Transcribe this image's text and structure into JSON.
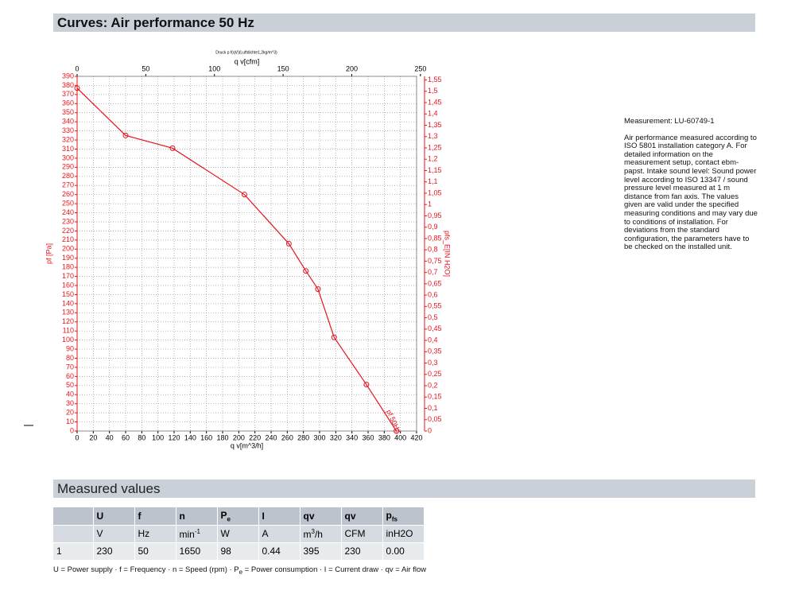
{
  "header": {
    "title": "Curves: Air performance 50 Hz"
  },
  "chart": {
    "type": "line",
    "title": "Druck p f(qV)(Luftdichte1,2kg/m^3)",
    "x_label": "q v[m^3/h]",
    "x2_label": "q v[cfm]",
    "y_label": "pf [Pa]",
    "y2_label": "pfs_E[IN H2O]",
    "annotation": "pf 50Hz",
    "x": [
      0,
      60,
      118,
      207,
      262,
      283,
      298,
      318,
      358,
      395
    ],
    "series": [
      {
        "name": "pf 50Hz",
        "color": "#e8141c",
        "values": [
          377,
          325,
          311,
          260,
          206,
          176,
          156,
          103,
          51,
          0
        ]
      }
    ],
    "xlim": [
      0,
      420
    ],
    "xticks": [
      0,
      20,
      40,
      60,
      80,
      100,
      120,
      140,
      160,
      180,
      200,
      220,
      240,
      260,
      280,
      300,
      320,
      340,
      360,
      380,
      400,
      420
    ],
    "x2lim": [
      0,
      247.2
    ],
    "x2ticks": [
      0,
      50,
      100,
      150,
      200,
      250
    ],
    "ylim": [
      0,
      390
    ],
    "yticks": [
      0,
      10,
      20,
      30,
      40,
      50,
      60,
      70,
      80,
      90,
      100,
      110,
      120,
      130,
      140,
      150,
      160,
      170,
      180,
      190,
      200,
      210,
      220,
      230,
      240,
      250,
      260,
      270,
      280,
      290,
      300,
      310,
      320,
      330,
      340,
      350,
      360,
      370,
      380,
      390
    ],
    "y2lim": [
      0,
      1.566
    ],
    "y2ticks": [
      0,
      {
        "value": 0.05,
        "label": "0,05"
      },
      {
        "value": 0.1,
        "label": "0,1"
      },
      {
        "value": 0.15,
        "label": "0,15"
      },
      {
        "value": 0.2,
        "label": "0,2"
      },
      {
        "value": 0.25,
        "label": "0,25"
      },
      {
        "value": 0.3,
        "label": "0,3"
      },
      {
        "value": 0.35,
        "label": "0,35"
      },
      {
        "value": 0.4,
        "label": "0,4"
      },
      {
        "value": 0.45,
        "label": "0,45"
      },
      {
        "value": 0.5,
        "label": "0,5"
      },
      {
        "value": 0.55,
        "label": "0,55"
      },
      {
        "value": 0.6,
        "label": "0,6"
      },
      {
        "value": 0.65,
        "label": "0,65"
      },
      {
        "value": 0.7,
        "label": "0,7"
      },
      {
        "value": 0.75,
        "label": "0,75"
      },
      {
        "value": 0.8,
        "label": "0,8"
      },
      {
        "value": 0.85,
        "label": "0,85"
      },
      {
        "value": 0.9,
        "label": "0,9"
      },
      {
        "value": 0.95,
        "label": "0,95"
      },
      1,
      {
        "value": 1.05,
        "label": "1,05"
      },
      {
        "value": 1.1,
        "label": "1,1"
      },
      {
        "value": 1.15,
        "label": "1,15"
      },
      {
        "value": 1.2,
        "label": "1,2"
      },
      {
        "value": 1.25,
        "label": "1,25"
      },
      {
        "value": 1.3,
        "label": "1,3"
      },
      {
        "value": 1.35,
        "label": "1,35"
      },
      {
        "value": 1.4,
        "label": "1,4"
      },
      {
        "value": 1.45,
        "label": "1,45"
      },
      {
        "value": 1.5,
        "label": "1,5"
      },
      {
        "value": 1.55,
        "label": "1,55"
      }
    ],
    "grid": true
  },
  "notes": {
    "measurement": "Measurement: LU-60749-1",
    "text": "Air performance measured according to ISO 5801 installation category A. For detailed information on the measurement setup, contact ebm-papst. Intake sound level: Sound power level according to ISO 13347 / sound pressure level measured at 1 m distance from fan axis. The values given are valid under the specified measuring conditions and may vary due to conditions of installation. For deviations from the standard configuration, the parameters have to be checked on the installed unit."
  },
  "measured": {
    "title": "Measured values",
    "header": [
      {
        "base": ""
      },
      {
        "base": "U"
      },
      {
        "base": "f"
      },
      {
        "base": "n"
      },
      {
        "base": "P",
        "sub": "e"
      },
      {
        "base": "I"
      },
      {
        "base": "qv"
      },
      {
        "base": "qv"
      },
      {
        "base": "p",
        "sub": "fs"
      }
    ],
    "units": [
      {
        "base": ""
      },
      {
        "base": "V"
      },
      {
        "base": "Hz"
      },
      {
        "base": "min",
        "sup": "-1"
      },
      {
        "base": "W"
      },
      {
        "base": "A"
      },
      {
        "base": "m",
        "sup": "3",
        "rest": "/h"
      },
      {
        "base": "CFM"
      },
      {
        "base": "inH2O"
      }
    ],
    "rows": [
      [
        "1",
        "230",
        "50",
        "1650",
        "98",
        "0.44",
        "395",
        "230",
        "0.00"
      ]
    ],
    "footnote": [
      "U = Power supply · f = Frequency · n = Speed (rpm) · P",
      "e",
      " = Power consumption · I = Current draw · qv = Air flow"
    ]
  }
}
